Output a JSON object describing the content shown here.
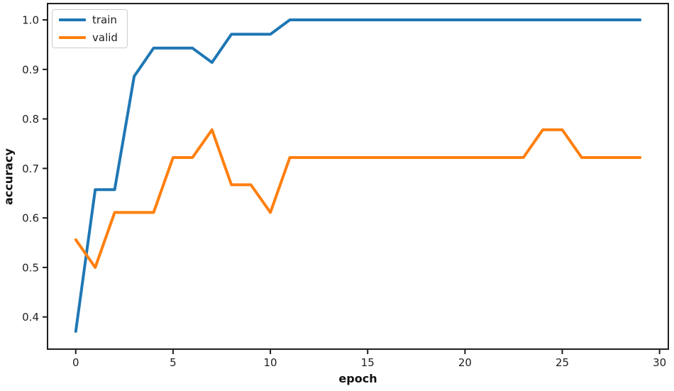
{
  "chart_data": {
    "type": "line",
    "title": "",
    "xlabel": "epoch",
    "ylabel": "accuracy",
    "grid": false,
    "x": [
      0,
      1,
      2,
      3,
      4,
      5,
      6,
      7,
      8,
      9,
      10,
      11,
      12,
      13,
      14,
      15,
      16,
      17,
      18,
      19,
      20,
      21,
      22,
      23,
      24,
      25,
      26,
      27,
      28,
      29
    ],
    "series": [
      {
        "name": "train",
        "color": "#1f77b4",
        "values": [
          0.371,
          0.657,
          0.657,
          0.886,
          0.943,
          0.943,
          0.943,
          0.914,
          0.971,
          0.971,
          0.971,
          1.0,
          1.0,
          1.0,
          1.0,
          1.0,
          1.0,
          1.0,
          1.0,
          1.0,
          1.0,
          1.0,
          1.0,
          1.0,
          1.0,
          1.0,
          1.0,
          1.0,
          1.0,
          1.0
        ]
      },
      {
        "name": "valid",
        "color": "#ff7f0e",
        "values": [
          0.556,
          0.5,
          0.611,
          0.611,
          0.611,
          0.722,
          0.722,
          0.778,
          0.667,
          0.667,
          0.611,
          0.722,
          0.722,
          0.722,
          0.722,
          0.722,
          0.722,
          0.722,
          0.722,
          0.722,
          0.722,
          0.722,
          0.722,
          0.722,
          0.778,
          0.778,
          0.722,
          0.722,
          0.722,
          0.722
        ]
      }
    ],
    "x_ticks": [
      0,
      5,
      10,
      15,
      20,
      25,
      30
    ],
    "y_ticks": [
      0.4,
      0.5,
      0.6,
      0.7,
      0.8,
      0.9,
      1.0
    ],
    "xlim": [
      -1.45,
      30.45
    ],
    "ylim": [
      0.335,
      1.033
    ],
    "legend": {
      "position": "upper-left",
      "entries": [
        "train",
        "valid"
      ]
    },
    "spine_color": "#1f1f1f"
  }
}
